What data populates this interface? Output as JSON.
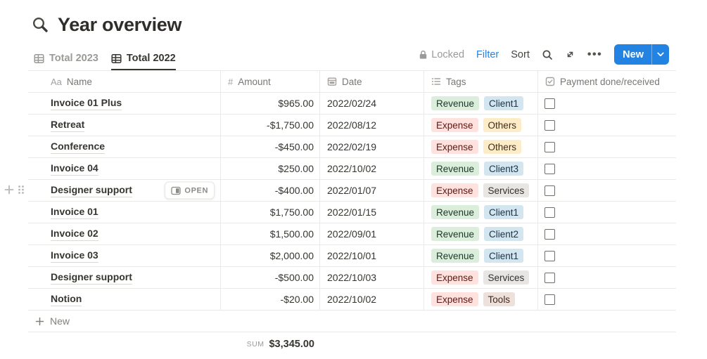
{
  "page": {
    "title": "Year overview",
    "title_icon": "magnifier-icon"
  },
  "tabs": [
    {
      "label": "Total 2023",
      "icon": "table-view-icon",
      "active": false
    },
    {
      "label": "Total 2022",
      "icon": "table-view-icon",
      "active": true
    }
  ],
  "toolbar": {
    "locked_label": "Locked",
    "filter_label": "Filter",
    "sort_label": "Sort",
    "more_glyph": "•••",
    "new_label": "New"
  },
  "table": {
    "columns": [
      {
        "icon": "text-icon",
        "glyph": "Aa",
        "label": "Name"
      },
      {
        "icon": "number-icon",
        "glyph": "#",
        "label": "Amount"
      },
      {
        "icon": "calendar-icon",
        "label": "Date"
      },
      {
        "icon": "list-icon",
        "label": "Tags"
      },
      {
        "icon": "checkbox-icon",
        "label": "Payment done/received"
      }
    ],
    "rows": [
      {
        "name": "Invoice 01 Plus",
        "amount": "$965.00",
        "date": "2022/02/24",
        "tags": [
          {
            "label": "Revenue",
            "color": "green"
          },
          {
            "label": "Client1",
            "color": "blue"
          }
        ],
        "checked": false,
        "open_hover": false
      },
      {
        "name": "Retreat",
        "amount": "-$1,750.00",
        "date": "2022/08/12",
        "tags": [
          {
            "label": "Expense",
            "color": "red"
          },
          {
            "label": "Others",
            "color": "yellow"
          }
        ],
        "checked": false,
        "open_hover": false
      },
      {
        "name": "Conference",
        "amount": "-$450.00",
        "date": "2022/02/19",
        "tags": [
          {
            "label": "Expense",
            "color": "red"
          },
          {
            "label": "Others",
            "color": "yellow"
          }
        ],
        "checked": false,
        "open_hover": false
      },
      {
        "name": "Invoice 04",
        "amount": "$250.00",
        "date": "2022/10/02",
        "tags": [
          {
            "label": "Revenue",
            "color": "green"
          },
          {
            "label": "Client3",
            "color": "blue"
          }
        ],
        "checked": false,
        "open_hover": false
      },
      {
        "name": "Designer support",
        "amount": "-$400.00",
        "date": "2022/01/07",
        "tags": [
          {
            "label": "Expense",
            "color": "red"
          },
          {
            "label": "Services",
            "color": "gray"
          }
        ],
        "checked": false,
        "open_hover": true
      },
      {
        "name": "Invoice 01",
        "amount": "$1,750.00",
        "date": "2022/01/15",
        "tags": [
          {
            "label": "Revenue",
            "color": "green"
          },
          {
            "label": "Client1",
            "color": "blue"
          }
        ],
        "checked": false,
        "open_hover": false
      },
      {
        "name": "Invoice 02",
        "amount": "$1,500.00",
        "date": "2022/09/01",
        "tags": [
          {
            "label": "Revenue",
            "color": "green"
          },
          {
            "label": "Client2",
            "color": "blue"
          }
        ],
        "checked": false,
        "open_hover": false
      },
      {
        "name": "Invoice 03",
        "amount": "$2,000.00",
        "date": "2022/10/01",
        "tags": [
          {
            "label": "Revenue",
            "color": "green"
          },
          {
            "label": "Client1",
            "color": "blue"
          }
        ],
        "checked": false,
        "open_hover": false
      },
      {
        "name": "Designer support",
        "amount": "-$500.00",
        "date": "2022/10/03",
        "tags": [
          {
            "label": "Expense",
            "color": "red"
          },
          {
            "label": "Services",
            "color": "gray"
          }
        ],
        "checked": false,
        "open_hover": false
      },
      {
        "name": "Notion",
        "amount": "-$20.00",
        "date": "2022/10/02",
        "tags": [
          {
            "label": "Expense",
            "color": "red"
          },
          {
            "label": "Tools",
            "color": "brown"
          }
        ],
        "checked": false,
        "open_hover": false
      }
    ],
    "open_button_label": "OPEN",
    "new_row_label": "New",
    "sum_label": "SUM",
    "sum_value": "$3,345.00"
  },
  "colors": {
    "accent_blue": "#2383E2",
    "tags": {
      "green": {
        "bg": "#DBEDDB",
        "text": "#1C3829"
      },
      "blue": {
        "bg": "#D3E5EF",
        "text": "#183347"
      },
      "red": {
        "bg": "#FFE2DD",
        "text": "#5D1715"
      },
      "yellow": {
        "bg": "#FDECC8",
        "text": "#402C1B"
      },
      "gray": {
        "bg": "#E7E6E3",
        "text": "#32302C"
      },
      "brown": {
        "bg": "#EEE0DA",
        "text": "#442A1E"
      }
    }
  }
}
